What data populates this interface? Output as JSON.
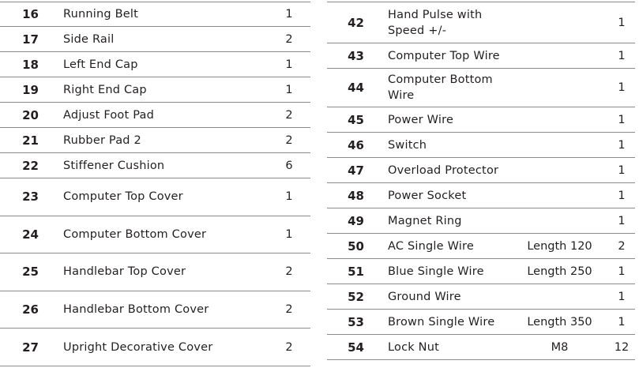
{
  "left": [
    {
      "no": "16",
      "name": "Running Belt",
      "qty": "1"
    },
    {
      "no": "17",
      "name": "Side Rail",
      "qty": "2"
    },
    {
      "no": "18",
      "name": "Left End Cap",
      "qty": "1"
    },
    {
      "no": "19",
      "name": "Right End Cap",
      "qty": "1"
    },
    {
      "no": "20",
      "name": "Adjust Foot Pad",
      "qty": "2"
    },
    {
      "no": "21",
      "name": "Rubber Pad 2",
      "qty": "2"
    },
    {
      "no": "22",
      "name": "Stiffener Cushion",
      "qty": "6"
    },
    {
      "no": "23",
      "name": "Computer Top Cover",
      "qty": "1"
    },
    {
      "no": "24",
      "name": "Computer Bottom Cover",
      "qty": "1"
    },
    {
      "no": "25",
      "name": "Handlebar Top Cover",
      "qty": "2"
    },
    {
      "no": "26",
      "name": "Handlebar Bottom Cover",
      "qty": "2"
    },
    {
      "no": "27",
      "name": "Upright Decorative Cover",
      "qty": "2"
    }
  ],
  "right": [
    {
      "no": "42",
      "name": "Hand Pulse with Speed +/-",
      "spec": "",
      "qty": "1"
    },
    {
      "no": "43",
      "name": "Computer Top Wire",
      "spec": "",
      "qty": "1"
    },
    {
      "no": "44",
      "name": "Computer Bottom Wire",
      "spec": "",
      "qty": "1"
    },
    {
      "no": "45",
      "name": "Power Wire",
      "spec": "",
      "qty": "1"
    },
    {
      "no": "46",
      "name": "Switch",
      "spec": "",
      "qty": "1"
    },
    {
      "no": "47",
      "name": "Overload Protector",
      "spec": "",
      "qty": "1"
    },
    {
      "no": "48",
      "name": "Power Socket",
      "spec": "",
      "qty": "1"
    },
    {
      "no": "49",
      "name": "Magnet Ring",
      "spec": "",
      "qty": "1"
    },
    {
      "no": "50",
      "name": "AC Single Wire",
      "spec": "Length 120",
      "qty": "2"
    },
    {
      "no": "51",
      "name": "Blue Single Wire",
      "spec": "Length 250",
      "qty": "1"
    },
    {
      "no": "52",
      "name": "Ground Wire",
      "spec": "",
      "qty": "1"
    },
    {
      "no": "53",
      "name": "Brown Single Wire",
      "spec": "Length 350",
      "qty": "1"
    },
    {
      "no": "54",
      "name": "Lock Nut",
      "spec": "M8",
      "qty": "12"
    }
  ]
}
